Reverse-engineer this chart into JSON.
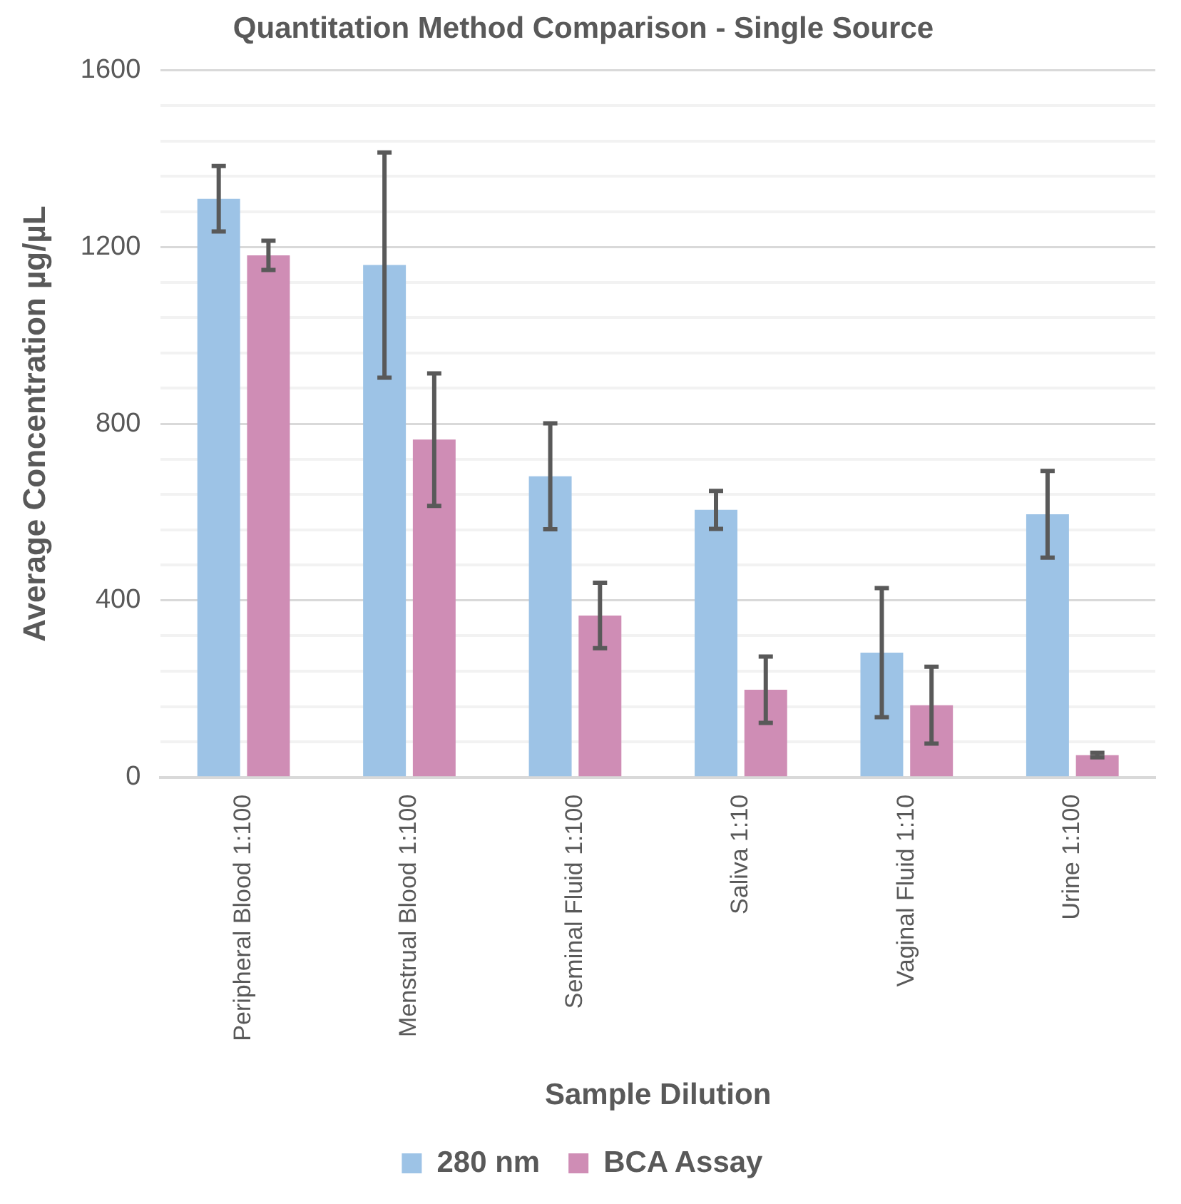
{
  "chart_data": {
    "type": "bar",
    "title": "Quantitation Method Comparison - Single Source",
    "xlabel": "Sample Dilution",
    "ylabel": "Average Concentration µg/µL",
    "categories": [
      "Peripheral Blood 1:100",
      "Menstrual Blood 1:100",
      "Seminal Fluid 1:100",
      "Saliva 1:10",
      "Vaginal Fluid 1:10",
      "Urine 1:100"
    ],
    "series": [
      {
        "name": "280 nm",
        "color": "#9dc3e6",
        "values": [
          1309,
          1159,
          681,
          605,
          282,
          595
        ],
        "errors": [
          74,
          255,
          120,
          43,
          146,
          98
        ]
      },
      {
        "name": "BCA Assay",
        "color": "#cf8db5",
        "values": [
          1181,
          764,
          366,
          198,
          163,
          50
        ],
        "errors": [
          33,
          150,
          74,
          75,
          87,
          5
        ]
      }
    ],
    "ylim": [
      0,
      1600
    ],
    "yticks": [
      0,
      {
        "value": 80,
        "label": null
      },
      {
        "value": 160,
        "label": null
      },
      {
        "value": 240,
        "label": null
      },
      {
        "value": 320,
        "label": null
      },
      400,
      {
        "value": 480,
        "label": null
      },
      {
        "value": 560,
        "label": null
      },
      {
        "value": 640,
        "label": null
      },
      {
        "value": 720,
        "label": null
      },
      800,
      {
        "value": 880,
        "label": null
      },
      {
        "value": 960,
        "label": null
      },
      {
        "value": 1040,
        "label": null
      },
      {
        "value": 1120,
        "label": null
      },
      1200,
      {
        "value": 1280,
        "label": null
      },
      {
        "value": 1360,
        "label": null
      },
      {
        "value": 1440,
        "label": null
      },
      {
        "value": 1520,
        "label": null
      },
      1600
    ],
    "grid": "y",
    "legend": "bottom"
  }
}
